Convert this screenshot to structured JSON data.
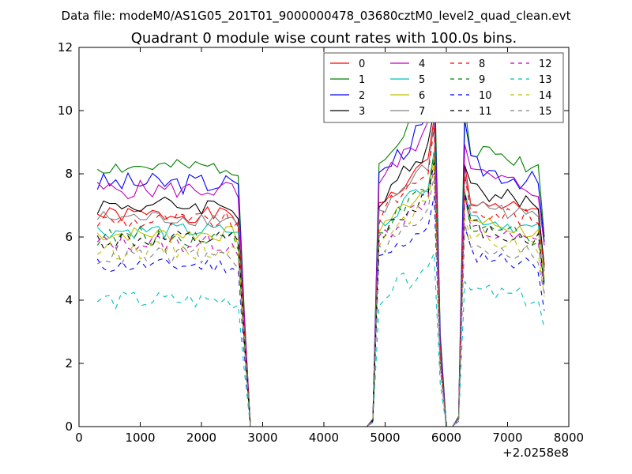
{
  "chart_data": {
    "type": "line",
    "suptitle": "Data file: modeM0/AS1G05_201T01_9000000478_03680cztM0_level2_quad_clean.evt",
    "title": "Quadrant 0 module wise count rates with 100.0s bins.",
    "xlabel": "",
    "ylabel": "",
    "x_offset_label": "+2.0258e8",
    "xlim": [
      0,
      8000
    ],
    "ylim": [
      0,
      12
    ],
    "x_ticks": [
      0,
      1000,
      2000,
      3000,
      4000,
      5000,
      6000,
      7000,
      8000
    ],
    "y_ticks": [
      0,
      2,
      4,
      6,
      8,
      10,
      12
    ],
    "x_tick_labels": [
      "0",
      "1000",
      "2000",
      "3000",
      "4000",
      "5000",
      "6000",
      "7000",
      "8000"
    ],
    "y_tick_labels": [
      "0",
      "2",
      "4",
      "6",
      "8",
      "10",
      "12"
    ],
    "grid": false,
    "legend_position": "top-right",
    "legend_columns": 4,
    "series": [
      {
        "name": "0",
        "color": "#ff0000",
        "dash": "solid",
        "level": 6.7,
        "amp": 0.25
      },
      {
        "name": "1",
        "color": "#008000",
        "dash": "solid",
        "level": 8.2,
        "amp": 0.25
      },
      {
        "name": "2",
        "color": "#0000ff",
        "dash": "solid",
        "level": 7.7,
        "amp": 0.35
      },
      {
        "name": "3",
        "color": "#000000",
        "dash": "solid",
        "level": 7.0,
        "amp": 0.3
      },
      {
        "name": "4",
        "color": "#bf00bf",
        "dash": "solid",
        "level": 7.5,
        "amp": 0.3
      },
      {
        "name": "5",
        "color": "#00bfbf",
        "dash": "solid",
        "level": 6.2,
        "amp": 0.25
      },
      {
        "name": "6",
        "color": "#bfbf00",
        "dash": "solid",
        "level": 6.1,
        "amp": 0.25
      },
      {
        "name": "7",
        "color": "#808080",
        "dash": "solid",
        "level": 6.6,
        "amp": 0.25
      },
      {
        "name": "8",
        "color": "#ff0000",
        "dash": "dashed",
        "level": 6.5,
        "amp": 0.3
      },
      {
        "name": "9",
        "color": "#008000",
        "dash": "dashed",
        "level": 6.0,
        "amp": 0.3
      },
      {
        "name": "10",
        "color": "#0000ff",
        "dash": "dashed",
        "level": 5.1,
        "amp": 0.25
      },
      {
        "name": "11",
        "color": "#000000",
        "dash": "dashed",
        "level": 5.9,
        "amp": 0.3
      },
      {
        "name": "12",
        "color": "#bf00bf",
        "dash": "dashed",
        "level": 5.8,
        "amp": 0.3
      },
      {
        "name": "13",
        "color": "#00bfbf",
        "dash": "dashed",
        "level": 4.0,
        "amp": 0.3
      },
      {
        "name": "14",
        "color": "#bfbf00",
        "dash": "dashed",
        "level": 5.6,
        "amp": 0.3
      },
      {
        "name": "15",
        "color": "#808080",
        "dash": "dashed",
        "level": 5.4,
        "amp": 0.3
      }
    ]
  }
}
